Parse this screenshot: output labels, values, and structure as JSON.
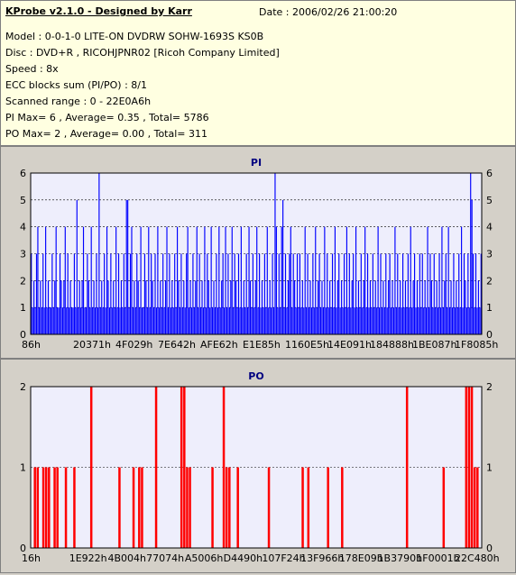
{
  "header": {
    "title": "KProbe v2.1.0 - Designed by Karr",
    "date": "Date : 2006/02/26 21:00:20",
    "lines": [
      "Model : 0-0-1-0 LITE-ON DVDRW SOHW-1693S KS0B",
      "Disc : DVD+R , RICOHJPNR02 [Ricoh Company Limited]",
      "Speed : 8x",
      "ECC blocks sum (PI/PO) : 8/1",
      "Scanned range : 0 - 22E0A6h",
      "PI Max= 6 , Average= 0.35 , Total= 5786",
      "PO Max= 2 , Average= 0.00 , Total= 311"
    ]
  },
  "colors": {
    "plot_bg": "#eeeefc",
    "pi_bars": "#0000ff",
    "po_bars": "#ff0000",
    "title": "#000080"
  },
  "chart_data": [
    {
      "type": "bar",
      "title": "PI",
      "xlabel": "",
      "ylabel": "",
      "ylim": [
        0,
        6
      ],
      "yticks": [
        0,
        1,
        2,
        3,
        4,
        5,
        6
      ],
      "grid": true,
      "x_range_hex": [
        "86h",
        "22E0A6h"
      ],
      "x_tick_labels": [
        "86h",
        "20371h",
        "4F029h",
        "7E642h",
        "AFE62h",
        "E1E85h",
        "1160E5h",
        "14E091h",
        "184888h",
        "1BE087h",
        "1F8085h"
      ],
      "series": [
        {
          "values": [
            3,
            1,
            2,
            1,
            3,
            4,
            1,
            2,
            1,
            3,
            1,
            4,
            1,
            2,
            1,
            1,
            3,
            1,
            2,
            4,
            1,
            1,
            3,
            2,
            1,
            2,
            4,
            1,
            3,
            1,
            2,
            1,
            1,
            3,
            1,
            5,
            1,
            2,
            1,
            2,
            4,
            1,
            1,
            3,
            2,
            1,
            4,
            1,
            2,
            1,
            3,
            1,
            6,
            1,
            2,
            1,
            3,
            1,
            4,
            2,
            1,
            3,
            1,
            2,
            1,
            4,
            1,
            3,
            1,
            2,
            1,
            3,
            1,
            5,
            5,
            1,
            3,
            4,
            1,
            2,
            1,
            3,
            2,
            1,
            4,
            1,
            1,
            3,
            2,
            1,
            4,
            1,
            3,
            2,
            1,
            3,
            1,
            4,
            1,
            2,
            1,
            3,
            1,
            2,
            4,
            1,
            3,
            1,
            2,
            1,
            3,
            1,
            4,
            2,
            1,
            3,
            1,
            2,
            1,
            3,
            4,
            1,
            2,
            1,
            3,
            1,
            2,
            4,
            1,
            3,
            1,
            2,
            1,
            4,
            1,
            3,
            2,
            1,
            4,
            1,
            2,
            1,
            3,
            1,
            4,
            1,
            2,
            3,
            1,
            4,
            1,
            3,
            1,
            2,
            4,
            1,
            3,
            2,
            1,
            3,
            1,
            4,
            1,
            2,
            1,
            3,
            1,
            4,
            2,
            1,
            3,
            1,
            2,
            4,
            1,
            3,
            1,
            2,
            1,
            3,
            1,
            4,
            1,
            2,
            1,
            3,
            1,
            6,
            4,
            1,
            3,
            1,
            4,
            5,
            1,
            3,
            1,
            2,
            3,
            4,
            1,
            3,
            2,
            1,
            3,
            1,
            3,
            1,
            2,
            1,
            4,
            1,
            3,
            1,
            2,
            1,
            3,
            1,
            4,
            1,
            2,
            3,
            1,
            2,
            1,
            4,
            1,
            3,
            1,
            2,
            1,
            3,
            1,
            4,
            1,
            2,
            3,
            1,
            2,
            1,
            3,
            1,
            4,
            1,
            3,
            1,
            2,
            3,
            1,
            4,
            1,
            2,
            1,
            3,
            1,
            2,
            4,
            1,
            3,
            1,
            2,
            1,
            3,
            1,
            2,
            1,
            4,
            1,
            3,
            1,
            2,
            1,
            3,
            1,
            2,
            3,
            1,
            2,
            1,
            4,
            1,
            3,
            1,
            2,
            1,
            3,
            1,
            2,
            1,
            3,
            1,
            4,
            1,
            2,
            3,
            1,
            2,
            1,
            3,
            1,
            3,
            1,
            2,
            1,
            4,
            1,
            3,
            2,
            1,
            3,
            1,
            2,
            1,
            3,
            1,
            4,
            1,
            2,
            3,
            1,
            4,
            1,
            2,
            1,
            3,
            1,
            2,
            1,
            3,
            1,
            4,
            1,
            3,
            2,
            1,
            3,
            1,
            6,
            5,
            3,
            1,
            3,
            1,
            2,
            1,
            3
          ]
        }
      ]
    },
    {
      "type": "bar",
      "title": "PO",
      "xlabel": "",
      "ylabel": "",
      "ylim": [
        0,
        2
      ],
      "yticks": [
        0,
        1,
        2
      ],
      "grid": true,
      "x_range_hex": [
        "16h",
        "22C480h"
      ],
      "x_tick_labels": [
        "16h",
        "1E922h",
        "4B004h",
        "77074h",
        "A5006h",
        "D4490h",
        "107F24h",
        "13F966h",
        "178E09h",
        "1B3790h",
        "1F0001h",
        "22C480h"
      ],
      "series": [
        {
          "values": [
            0,
            1,
            1,
            0,
            1,
            1,
            1,
            0,
            1,
            1,
            0,
            0,
            1,
            0,
            0,
            1,
            0,
            0,
            0,
            0,
            0,
            2,
            0,
            0,
            0,
            0,
            0,
            0,
            0,
            0,
            0,
            1,
            0,
            0,
            0,
            0,
            1,
            0,
            1,
            1,
            0,
            0,
            0,
            0,
            2,
            0,
            0,
            0,
            0,
            0,
            0,
            0,
            0,
            2,
            2,
            1,
            1,
            0,
            0,
            0,
            0,
            0,
            0,
            0,
            1,
            0,
            0,
            0,
            2,
            1,
            1,
            0,
            0,
            1,
            0,
            0,
            0,
            0,
            0,
            0,
            0,
            0,
            0,
            0,
            1,
            0,
            0,
            0,
            0,
            0,
            0,
            0,
            0,
            0,
            0,
            0,
            1,
            0,
            1,
            0,
            0,
            0,
            0,
            0,
            0,
            1,
            0,
            0,
            0,
            0,
            1,
            0,
            0,
            0,
            0,
            0,
            0,
            0,
            0,
            0,
            0,
            0,
            0,
            0,
            0,
            0,
            0,
            0,
            0,
            0,
            0,
            0,
            0,
            2,
            0,
            0,
            0,
            0,
            0,
            0,
            0,
            0,
            0,
            0,
            0,
            0,
            1,
            0,
            0,
            0,
            0,
            0,
            0,
            0,
            2,
            2,
            2,
            1,
            1,
            0
          ]
        }
      ]
    }
  ]
}
